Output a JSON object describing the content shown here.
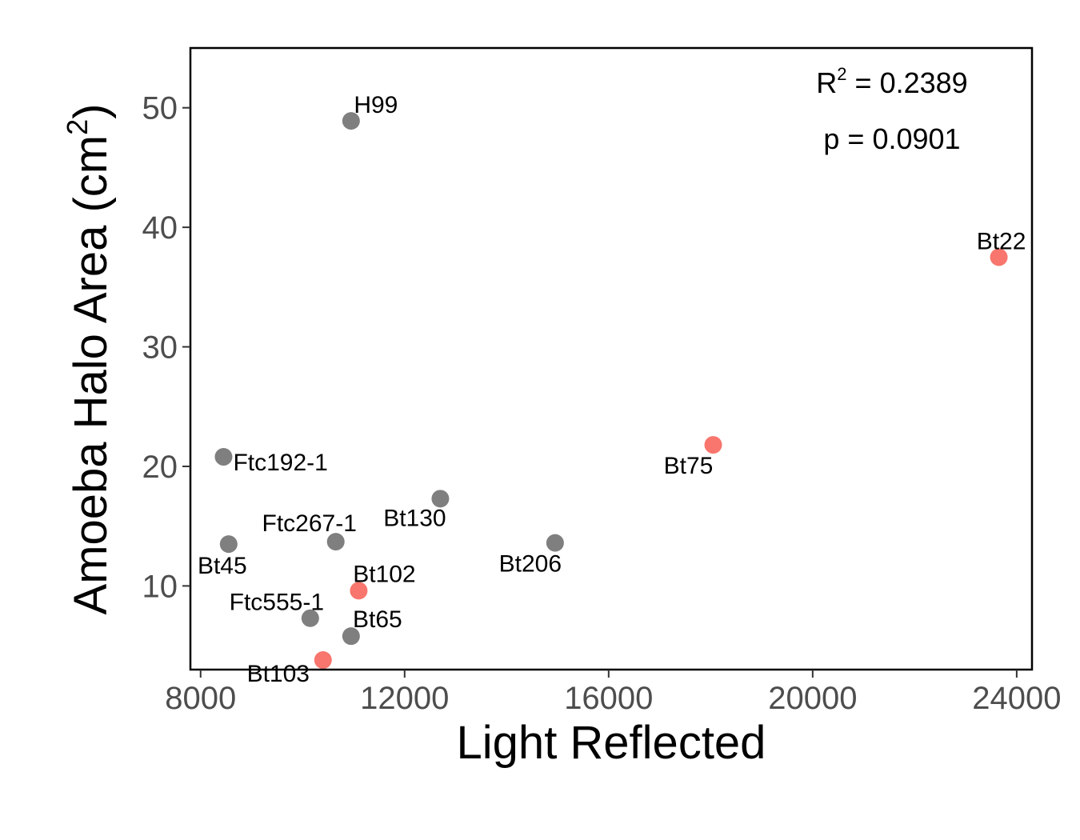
{
  "chart_data": {
    "type": "scatter",
    "title": "",
    "xlabel": "Light Reflected",
    "ylabel_main": "Amoeba Halo Area (cm",
    "ylabel_sup": "2",
    "ylabel_close": ")",
    "xlim": [
      7800,
      24300
    ],
    "ylim": [
      3.0,
      55.0
    ],
    "x_ticks": [
      8000,
      12000,
      16000,
      20000,
      24000
    ],
    "x_tick_labels": [
      "8000",
      "12000",
      "16000",
      "20000",
      "24000"
    ],
    "y_ticks": [
      10,
      20,
      30,
      40,
      50
    ],
    "y_tick_labels": [
      "10",
      "20",
      "30",
      "40",
      "50"
    ],
    "grid": false,
    "annotation": {
      "r2_prefix": "R",
      "r2_sup": "2",
      "r2_value": " = 0.2389",
      "p_text": "p = 0.0901"
    },
    "colors": {
      "gray": "#7f7f7f",
      "red": "#f8766d"
    },
    "points": [
      {
        "label": "H99",
        "x": 10950,
        "y": 48.9,
        "group": "gray"
      },
      {
        "label": "Bt22",
        "x": 23650,
        "y": 37.5,
        "group": "red"
      },
      {
        "label": "Bt75",
        "x": 18050,
        "y": 21.8,
        "group": "red"
      },
      {
        "label": "Ftc192-1",
        "x": 8450,
        "y": 20.8,
        "group": "gray"
      },
      {
        "label": "Bt130",
        "x": 12700,
        "y": 17.3,
        "group": "gray"
      },
      {
        "label": "Ftc267-1",
        "x": 10650,
        "y": 13.7,
        "group": "gray"
      },
      {
        "label": "Bt45",
        "x": 8550,
        "y": 13.5,
        "group": "gray"
      },
      {
        "label": "Bt206",
        "x": 14950,
        "y": 13.6,
        "group": "gray"
      },
      {
        "label": "Bt102",
        "x": 11100,
        "y": 9.6,
        "group": "red"
      },
      {
        "label": "Ftc555-1",
        "x": 10150,
        "y": 7.3,
        "group": "gray"
      },
      {
        "label": "Bt65",
        "x": 10950,
        "y": 5.8,
        "group": "gray"
      },
      {
        "label": "Bt103",
        "x": 10400,
        "y": 3.8,
        "group": "red"
      }
    ]
  }
}
